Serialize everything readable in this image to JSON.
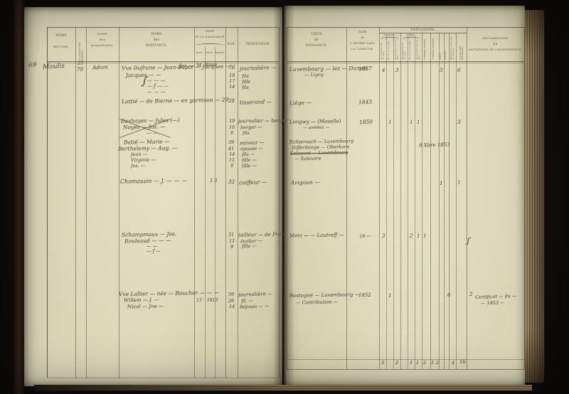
{
  "document": {
    "kind": "Registre de population manuscrit — double page reliée",
    "left_margin_number": "69"
  },
  "left_page": {
    "columns": {
      "streets": [
        "NOMS",
        "des rues."
      ],
      "house_number": "NUMÉRO des maisons.",
      "owners": [
        "NOMS",
        "des",
        "propriétaires."
      ],
      "inhabitants": [
        "NOMS",
        "des",
        "HABITANTS."
      ],
      "birth_date": [
        "DATE",
        "DE LA NAISSANCE."
      ],
      "birth_subs": [
        "Jour.",
        "Mois.",
        "Année."
      ],
      "age": "ÂGE.",
      "profession": "PROFESSION."
    }
  },
  "right_page": {
    "columns": {
      "birthplace": [
        "LIEUX",
        "de",
        "NAISSANCE."
      ],
      "entry_date": [
        "DATE",
        "de",
        "L'ENTRÉE DANS",
        "LA COMMUNE."
      ],
      "population": "POPULATION.",
      "boys": "Garçons.",
      "girls": "Filles.",
      "boys_subs": [
        "au-dessous de 12 ans.",
        "de 12 à 21 ans.",
        "au-dessus de 21 ans."
      ],
      "girls_subs": [
        "au-dessous de 12 ans.",
        "de 12 à 21 ans.",
        "au-dessus de 21 ans."
      ],
      "married_men": "Hommes mariés.",
      "married_women": "Femmes mariées.",
      "widowers": "Veufs.",
      "widows": "Veuves.",
      "military": "Militaires sous les drapeaux.",
      "total": "TOTAL des habitants.",
      "declarations": [
        "DÉCLARATIONS",
        "DE",
        "MUTATIONS ET CHANGEMENTS."
      ]
    }
  },
  "handwriting": [
    "69",
    "Moulis",
    "21",
    "70",
    "Adam",
    "Vve Dufrane — Jean-Bapte — Jacques —",
    "Jos. — M. Rose",
    "Jacques — —",
    "— — —",
    "— ƒ — —",
    "— — —",
    "∫",
    "Lattié — de Bierne — en garnison — 29",
    "76",
    "19",
    "17",
    "14",
    "28",
    "journalière —",
    "fils",
    "fille",
    "fils",
    "tisserand —",
    "Luxembourg — lez — Dames",
    "— Ligny",
    "Liège —",
    "1837",
    "1843",
    "4",
    "3",
    "3",
    "6",
    "Deshayes — Jules (—)",
    "Noyés — Jos. —",
    "— —",
    "19",
    "16",
    "6",
    "journalier — berger",
    "berger —",
    "fils",
    "Longwy — (Moselle)",
    "— années —",
    "1850",
    "1",
    "1",
    "1",
    "3",
    "Batié — Marie —",
    "Berthelemy — Aug. —",
    "Jean —",
    "Virginie —",
    "Jos. —",
    "39",
    "41",
    "14",
    "11",
    "9",
    "mineur —",
    "épouse —",
    "fils —",
    "fille —",
    "fille —",
    "Echternach — Luxembourg",
    "Differdange — Oberkorn",
    "Soleuvre — Luxembourg",
    "— Soleuvre",
    "9 Xbre 1853",
    "Chomassin — J. — — —",
    "1 3",
    "32",
    "coiffeur —",
    "Avignon —",
    "1",
    "1",
    "Schampmaux — Jos.",
    "Rouleaud — — —",
    "— —",
    "— ƒ —",
    "31",
    "11",
    "9",
    "tailleur — de Pre —",
    "écolier —",
    "fille —",
    "Metz — — Lautreff —",
    "18 —",
    "3",
    "2",
    "1",
    "1",
    "ʃ",
    "Vve Lallier — née — Boucher — — —",
    "Willem — J. —",
    "Nicol — Jne —",
    "13",
    "1813",
    "50",
    "26",
    "14",
    "journalière —",
    "fil. —",
    "Réjouis — —",
    "Bastogne — Luxembourg —",
    "— Contribution —",
    "1852",
    "1",
    "6",
    "2",
    "Certificat — du —",
    "— 1853 —",
    "3",
    "2",
    "1",
    "1",
    "2",
    "1",
    "2",
    "4",
    "16"
  ]
}
